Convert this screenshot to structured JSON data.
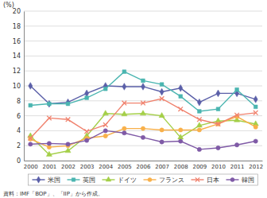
{
  "chart_data": {
    "type": "line",
    "y_label": "(%)",
    "source": "資料：IMF「BOP」、「IIP」から作成。",
    "categories": [
      "2000",
      "2001",
      "2002",
      "2003",
      "2004",
      "2005",
      "2006",
      "2007",
      "2008",
      "2009",
      "2010",
      "2011",
      "2012"
    ],
    "ylim": [
      0,
      20
    ],
    "yticks": [
      0,
      2,
      4,
      6,
      8,
      10,
      12,
      14,
      16,
      18,
      20
    ],
    "grid": true,
    "legend": "bottom",
    "series": [
      {
        "name": "米国",
        "color": "#5a5fa8",
        "marker": "diamond",
        "values": [
          10.0,
          7.6,
          7.8,
          9.0,
          10.0,
          9.9,
          9.9,
          9.2,
          9.7,
          7.8,
          9.0,
          9.0,
          8.2
        ]
      },
      {
        "name": "英国",
        "color": "#4ab5b0",
        "marker": "square",
        "values": [
          7.4,
          7.6,
          7.6,
          8.4,
          9.6,
          11.9,
          10.7,
          10.2,
          8.6,
          6.6,
          6.9,
          9.5,
          7.2
        ]
      },
      {
        "name": "ドイツ",
        "color": "#a4cf48",
        "marker": "triangle",
        "values": [
          3.3,
          0.8,
          1.3,
          3.3,
          6.3,
          6.2,
          6.3,
          6.0,
          3.1,
          4.7,
          5.3,
          5.4,
          4.9
        ]
      },
      {
        "name": "フランス",
        "color": "#f8b04a",
        "marker": "circle",
        "values": [
          2.9,
          1.8,
          2.0,
          3.0,
          3.3,
          4.3,
          4.3,
          4.1,
          4.1,
          4.1,
          4.9,
          5.9,
          4.5
        ]
      },
      {
        "name": "日本",
        "color": "#f0826e",
        "marker": "x",
        "values": [
          3.0,
          5.7,
          5.5,
          3.9,
          4.8,
          7.7,
          7.7,
          8.3,
          6.9,
          5.5,
          4.9,
          6.1,
          6.4
        ]
      },
      {
        "name": "韓国",
        "color": "#7f5aa6",
        "marker": "circle",
        "values": [
          2.2,
          2.3,
          2.2,
          2.7,
          4.0,
          3.7,
          3.1,
          2.5,
          2.6,
          1.5,
          1.7,
          2.1,
          2.6
        ]
      }
    ]
  }
}
